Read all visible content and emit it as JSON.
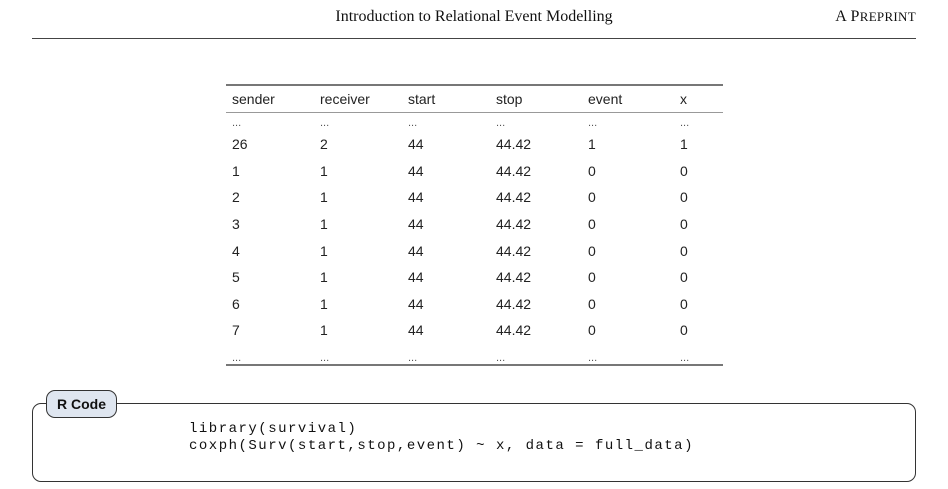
{
  "header": {
    "title": "Introduction to Relational Event Modelling",
    "right_initial": "A P",
    "right_rest": "REPRINT"
  },
  "table": {
    "columns": [
      "sender",
      "receiver",
      "start",
      "stop",
      "event",
      "x"
    ],
    "ellipsis": "...",
    "rows": [
      [
        "26",
        "2",
        "44",
        "44.42",
        "1",
        "1"
      ],
      [
        "1",
        "1",
        "44",
        "44.42",
        "0",
        "0"
      ],
      [
        "2",
        "1",
        "44",
        "44.42",
        "0",
        "0"
      ],
      [
        "3",
        "1",
        "44",
        "44.42",
        "0",
        "0"
      ],
      [
        "4",
        "1",
        "44",
        "44.42",
        "0",
        "0"
      ],
      [
        "5",
        "1",
        "44",
        "44.42",
        "0",
        "0"
      ],
      [
        "6",
        "1",
        "44",
        "44.42",
        "0",
        "0"
      ],
      [
        "7",
        "1",
        "44",
        "44.42",
        "0",
        "0"
      ]
    ]
  },
  "code_block": {
    "label": "R Code",
    "lines": [
      "library(survival)",
      "coxph(Surv(start,stop,event) ~ x, data = full_data)"
    ]
  }
}
